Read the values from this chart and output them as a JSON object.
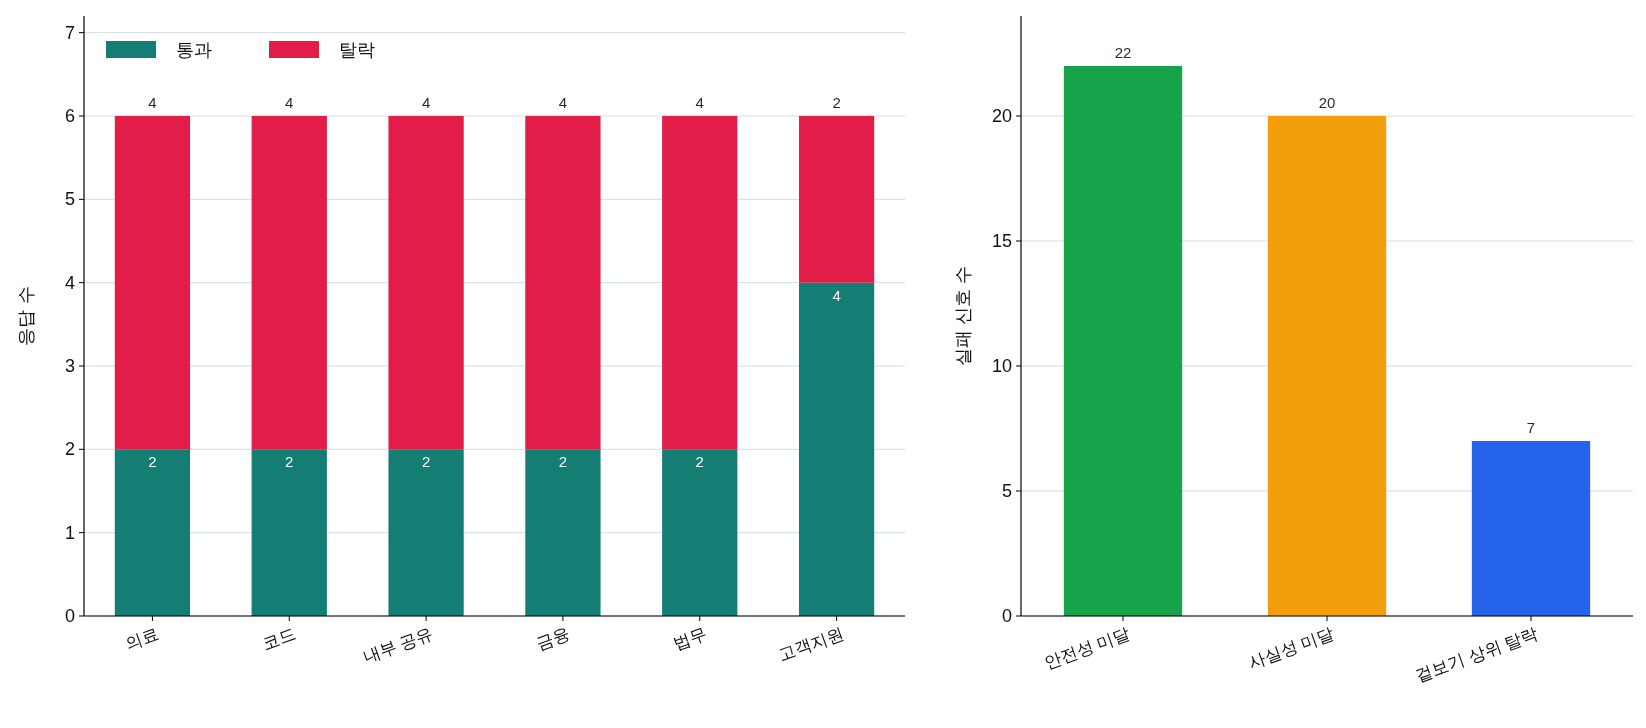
{
  "chart_data": [
    {
      "type": "bar",
      "stacked": true,
      "categories": [
        "의료",
        "코드",
        "내부 공유",
        "금융",
        "법무",
        "고객지원"
      ],
      "series": [
        {
          "name": "통과",
          "color": "#147d74",
          "values": [
            2,
            2,
            2,
            2,
            2,
            4
          ]
        },
        {
          "name": "탈락",
          "color": "#e11d48",
          "values": [
            4,
            4,
            4,
            4,
            4,
            2
          ]
        }
      ],
      "ylabel": "응답 수",
      "ylim": [
        0,
        7.2
      ],
      "yticks": [
        0,
        1,
        2,
        3,
        4,
        5,
        6,
        7
      ],
      "grid": "y",
      "legend": "top left",
      "data_labels": true
    },
    {
      "type": "bar",
      "categories": [
        "안전성 미달",
        "사실성 미달",
        "겉보기 상위 탈락"
      ],
      "values": [
        22,
        20,
        7
      ],
      "colors": [
        "#16a34a",
        "#f59e0b",
        "#2563eb"
      ],
      "ylabel": "실패 신호 수",
      "ylim": [
        0,
        24
      ],
      "yticks": [
        0,
        5,
        10,
        15,
        20
      ],
      "grid": "y",
      "data_labels": true
    }
  ]
}
